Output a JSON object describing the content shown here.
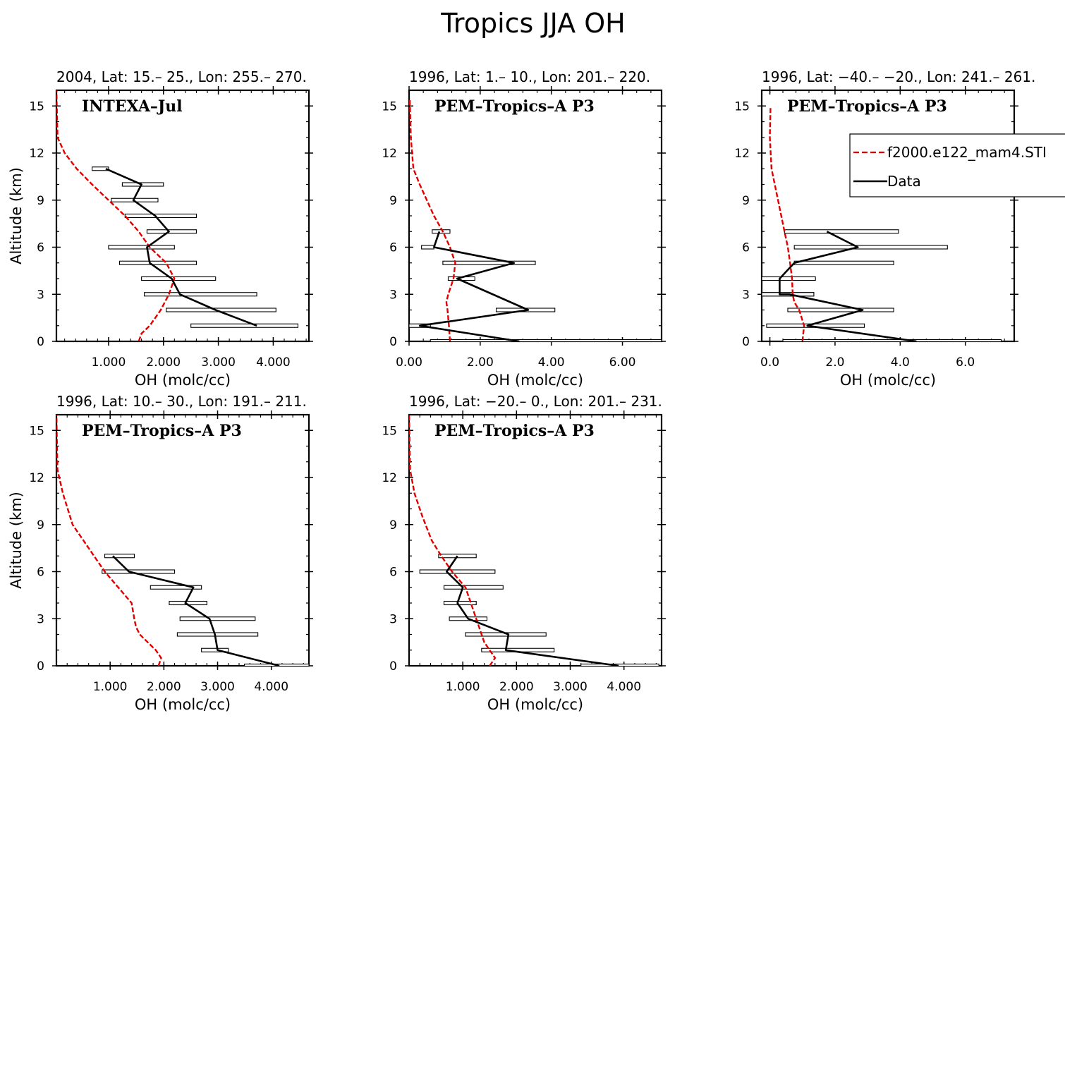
{
  "figure": {
    "title": "Tropics JJA OH"
  },
  "legend": {
    "model_label": "f2000.e122_mam4.STI",
    "data_label": "Data",
    "model_color": "#e00000",
    "data_color": "#000000"
  },
  "chart_data": [
    {
      "type": "line",
      "title": "2004, Lat: 15.– 25., Lon: 255.– 270.",
      "campaign": "INTEXA–Jul",
      "xlabel": "OH (molc/cc)",
      "ylabel": "Altitude (km)",
      "xlim": [
        0.05,
        4.65
      ],
      "ylim": [
        0,
        16
      ],
      "xticks": [
        1.0,
        2.0,
        3.0,
        4.0
      ],
      "xticklabels": [
        "1.000",
        "2.000",
        "3.000",
        "4.000"
      ],
      "yticks": [
        0,
        3,
        6,
        9,
        12,
        15
      ],
      "yticklabels": [
        "0",
        "3",
        "6",
        "9",
        "12",
        "15"
      ],
      "model": {
        "name": "f2000.e122_mam4.STI",
        "x": [
          1.55,
          1.6,
          1.75,
          1.95,
          2.1,
          2.2,
          2.05,
          1.75,
          1.55,
          1.3,
          1.0,
          0.7,
          0.42,
          0.2,
          0.07,
          0.05
        ],
        "y": [
          0,
          0.5,
          1,
          2,
          3,
          4,
          5,
          6,
          7,
          8,
          9,
          10,
          11,
          12,
          13,
          16
        ]
      },
      "data": {
        "name": "Data",
        "x": [
          3.7,
          2.95,
          2.3,
          2.15,
          1.75,
          1.7,
          2.1,
          1.85,
          1.45,
          1.6,
          0.95
        ],
        "y": [
          1,
          2,
          3,
          4,
          5,
          6,
          7,
          8,
          9,
          10,
          11
        ],
        "xmin": [
          2.5,
          2.05,
          1.65,
          1.6,
          1.2,
          1.0,
          1.7,
          1.3,
          1.05,
          1.25,
          0.7
        ],
        "xmax": [
          4.45,
          4.05,
          3.7,
          2.95,
          2.6,
          2.2,
          2.6,
          2.6,
          1.9,
          2.0,
          1.0
        ]
      }
    },
    {
      "type": "line",
      "title": "1996, Lat: 1.– 10., Lon: 201.– 220.",
      "campaign": "PEM–Tropics–A P3",
      "xlabel": "OH (molc/cc)",
      "ylabel": "",
      "xlim": [
        0,
        7.1
      ],
      "ylim": [
        0,
        16
      ],
      "xticks": [
        0,
        2,
        4,
        6
      ],
      "xticklabels": [
        "0.00",
        "2.00",
        "4.00",
        "6.00"
      ],
      "yticks": [
        0,
        3,
        6,
        9,
        12,
        15
      ],
      "yticklabels": [
        "0",
        "3",
        "6",
        "9",
        "12",
        "15"
      ],
      "model": {
        "name": "f2000.e122_mam4.STI",
        "x": [
          1.15,
          1.12,
          1.08,
          1.05,
          1.1,
          1.25,
          1.3,
          1.15,
          0.95,
          0.7,
          0.5,
          0.3,
          0.12,
          0.05,
          0.02
        ],
        "y": [
          0,
          1,
          2,
          2.5,
          3,
          4,
          5,
          6,
          7,
          8,
          9,
          10,
          11,
          13,
          15.5
        ]
      },
      "data": {
        "name": "Data",
        "x": [
          3.1,
          0.3,
          3.35,
          1.35,
          2.95,
          0.7,
          0.85
        ],
        "y": [
          0,
          1,
          2,
          4,
          5,
          6,
          7
        ],
        "xmin": [
          0.6,
          0.0,
          2.45,
          1.1,
          0.95,
          0.35,
          0.65
        ],
        "xmax": [
          7.1,
          0.6,
          4.1,
          1.85,
          3.55,
          0.7,
          1.15
        ]
      }
    },
    {
      "type": "line",
      "title": "1996, Lat: −40.– −20., Lon: 241.– 261.",
      "campaign": "PEM–Tropics–A P3",
      "xlabel": "OH (molc/cc)",
      "ylabel": "",
      "xlim": [
        -0.25,
        7.5
      ],
      "ylim": [
        0,
        16
      ],
      "xticks": [
        0,
        2,
        4,
        6
      ],
      "xticklabels": [
        "0.0",
        "2.0",
        "4.0",
        "6.0"
      ],
      "yticks": [
        0,
        3,
        6,
        9,
        12,
        15
      ],
      "yticklabels": [
        "0",
        "3",
        "6",
        "9",
        "12",
        "15"
      ],
      "model": {
        "name": "f2000.e122_mam4.STI",
        "x": [
          1.0,
          1.05,
          0.9,
          0.75,
          0.7,
          0.68,
          0.62,
          0.55,
          0.45,
          0.35,
          0.25,
          0.15,
          0.05,
          0.0,
          0.02
        ],
        "y": [
          0,
          1,
          2,
          2.5,
          3,
          4,
          5,
          6,
          7,
          8,
          9,
          10,
          11,
          13,
          15
        ]
      },
      "data": {
        "name": "Data",
        "x": [
          4.5,
          1.15,
          2.85,
          0.6,
          0.3,
          0.3,
          0.75,
          2.7,
          1.75
        ],
        "y": [
          0,
          1,
          2,
          3,
          3,
          4,
          5,
          6,
          7
        ],
        "xmin": [
          0.4,
          -0.1,
          0.55,
          -0.25,
          -0.25,
          -0.25,
          0.75,
          0.75,
          0.45
        ],
        "xmax": [
          7.1,
          2.9,
          3.8,
          1.35,
          1.35,
          1.4,
          3.8,
          5.45,
          3.95
        ]
      }
    },
    {
      "type": "line",
      "title": "1996, Lat: 10.– 30., Lon: 191.– 211.",
      "campaign": "PEM–Tropics–A P3",
      "xlabel": "OH (molc/cc)",
      "ylabel": "Altitude (km)",
      "xlim": [
        0,
        4.7
      ],
      "ylim": [
        0,
        16
      ],
      "xticks": [
        1.0,
        2.0,
        3.0,
        4.0
      ],
      "xticklabels": [
        "1.000",
        "2.000",
        "3.000",
        "4.000"
      ],
      "yticks": [
        0,
        3,
        6,
        9,
        12,
        15
      ],
      "yticklabels": [
        "0",
        "3",
        "6",
        "9",
        "12",
        "15"
      ],
      "model": {
        "name": "f2000.e122_mam4.STI",
        "x": [
          1.9,
          1.95,
          1.85,
          1.55,
          1.48,
          1.45,
          1.4,
          1.15,
          0.9,
          0.7,
          0.5,
          0.3,
          0.12,
          0.02,
          0.0
        ],
        "y": [
          0,
          0.5,
          1,
          2,
          2.5,
          3,
          4,
          5,
          6,
          7,
          8,
          9,
          11,
          12.5,
          16
        ]
      },
      "data": {
        "name": "Data",
        "x": [
          4.15,
          3.0,
          2.95,
          2.85,
          2.4,
          2.55,
          1.35,
          1.05
        ],
        "y": [
          0,
          1,
          2,
          3,
          4,
          5,
          6,
          7
        ],
        "xmin": [
          3.5,
          2.7,
          2.25,
          2.3,
          2.1,
          1.75,
          0.85,
          0.9
        ],
        "xmax": [
          4.7,
          3.2,
          3.75,
          3.7,
          2.8,
          2.7,
          2.2,
          1.45
        ]
      }
    },
    {
      "type": "line",
      "title": "1996, Lat: −20.– 0., Lon: 201.– 231.",
      "campaign": "PEM–Tropics–A P3",
      "xlabel": "OH (molc/cc)",
      "ylabel": "",
      "xlim": [
        0,
        4.7
      ],
      "ylim": [
        0,
        16
      ],
      "xticks": [
        1.0,
        2.0,
        3.0,
        4.0
      ],
      "xticklabels": [
        "1.000",
        "2.000",
        "3.000",
        "4.000"
      ],
      "yticks": [
        0,
        3,
        6,
        9,
        12,
        15
      ],
      "yticklabels": [
        "0",
        "3",
        "6",
        "9",
        "12",
        "15"
      ],
      "model": {
        "name": "f2000.e122_mam4.STI",
        "x": [
          1.5,
          1.6,
          1.5,
          1.4,
          1.3,
          1.2,
          1.05,
          0.8,
          0.6,
          0.42,
          0.25,
          0.1,
          0.02,
          0.0
        ],
        "y": [
          0,
          0.5,
          1,
          1.5,
          2.5,
          3.5,
          5,
          6,
          7,
          8,
          9.5,
          11,
          12.5,
          16
        ]
      },
      "data": {
        "name": "Data",
        "x": [
          3.9,
          1.8,
          1.85,
          1.1,
          0.9,
          1.0,
          0.7,
          0.9
        ],
        "y": [
          0,
          1,
          2,
          3,
          4,
          5,
          6,
          7
        ],
        "xmin": [
          3.2,
          1.35,
          1.05,
          0.75,
          0.65,
          0.65,
          0.2,
          0.55
        ],
        "xmax": [
          4.65,
          2.7,
          2.55,
          1.45,
          1.25,
          1.75,
          1.6,
          1.25
        ]
      }
    }
  ]
}
